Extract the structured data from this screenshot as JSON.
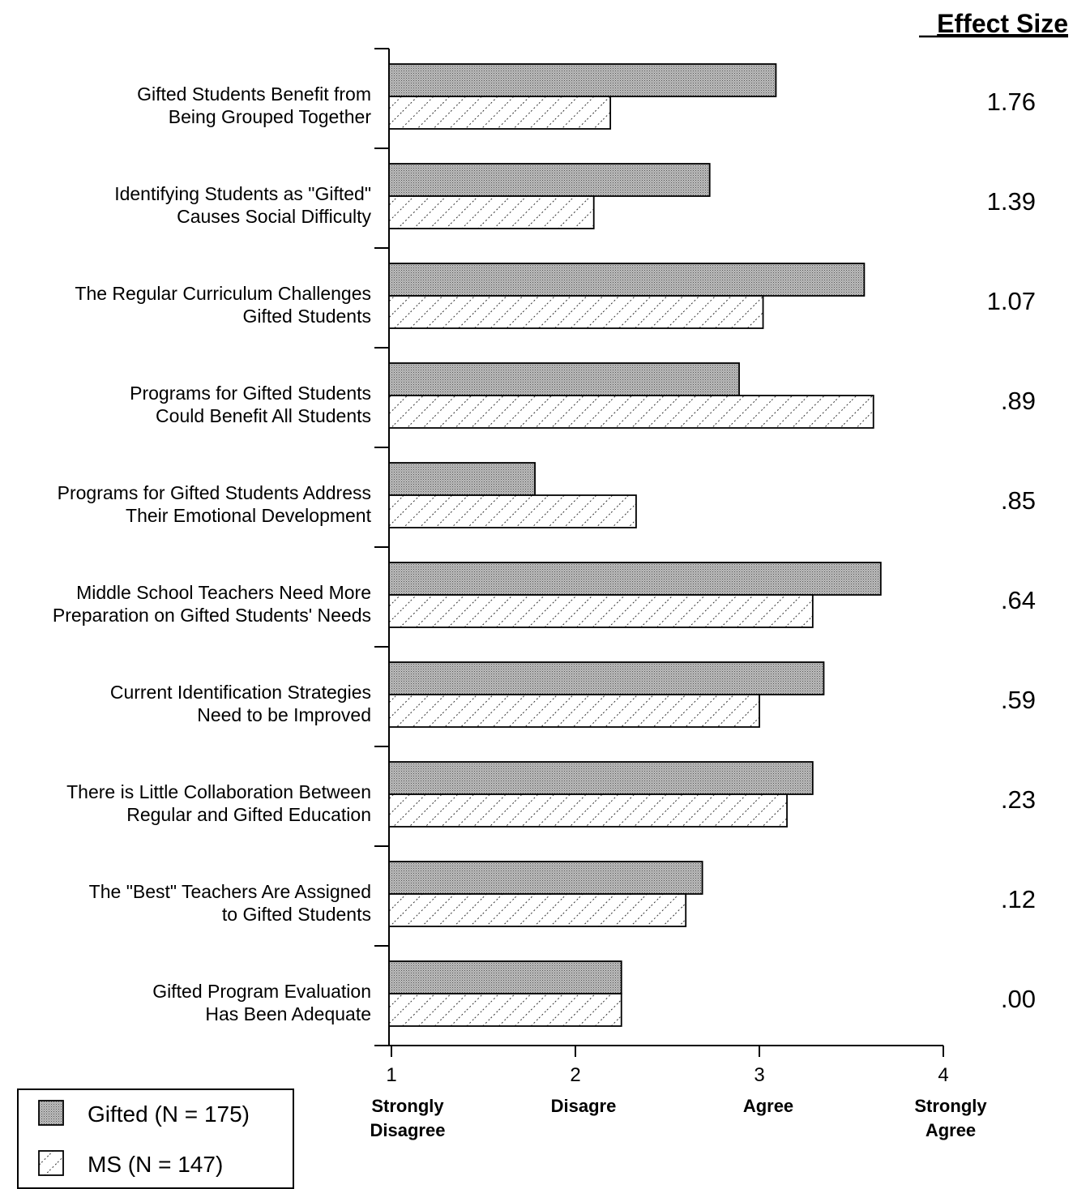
{
  "chart_data": {
    "type": "bar",
    "orientation": "horizontal",
    "title": "",
    "xlabel": "",
    "ylabel": "",
    "xlim": [
      1,
      4
    ],
    "ticks": [
      {
        "value": 1,
        "label": "1",
        "words": [
          "Strongly",
          "Disagree"
        ]
      },
      {
        "value": 2,
        "label": "2",
        "words": [
          "Disagre"
        ]
      },
      {
        "value": 3,
        "label": "3",
        "words": [
          "Agree"
        ]
      },
      {
        "value": 4,
        "label": "4",
        "words": [
          "Strongly",
          "Agree"
        ]
      }
    ],
    "categories": [
      [
        "Gifted Students Benefit from",
        "Being Grouped Together"
      ],
      [
        "Identifying Students as \"Gifted\"",
        "Causes Social Difficulty"
      ],
      [
        "The Regular Curriculum Challenges",
        "Gifted Students"
      ],
      [
        "Programs for Gifted Students",
        "Could Benefit All Students"
      ],
      [
        "Programs for Gifted Students Address",
        "Their Emotional Development"
      ],
      [
        "Middle School Teachers Need More",
        "Preparation on Gifted Students' Needs"
      ],
      [
        "Current Identification Strategies",
        "Need to be Improved"
      ],
      [
        "There is Little Collaboration Between",
        "Regular and Gifted Education"
      ],
      [
        "The \"Best\" Teachers Are Assigned",
        "to Gifted Students"
      ],
      [
        "Gifted Program Evaluation",
        "Has Been Adequate"
      ]
    ],
    "series": [
      {
        "name": "Gifted (N = 175)",
        "pattern": "dense-stipple",
        "values": [
          3.09,
          2.73,
          3.57,
          2.89,
          1.78,
          3.66,
          3.35,
          3.29,
          2.69,
          2.25
        ]
      },
      {
        "name": "MS (N = 147)",
        "pattern": "diagonal-dotted",
        "values": [
          2.19,
          2.1,
          3.02,
          3.62,
          2.33,
          3.29,
          3.0,
          3.15,
          2.6,
          2.25
        ]
      }
    ],
    "effect_size": {
      "title": "Effect Size",
      "values": [
        "1.76",
        "1.39",
        "1.07",
        ".89",
        ".85",
        ".64",
        ".59",
        ".23",
        ".12",
        ".00"
      ]
    },
    "legend_position": "bottom-left",
    "grid": false
  }
}
